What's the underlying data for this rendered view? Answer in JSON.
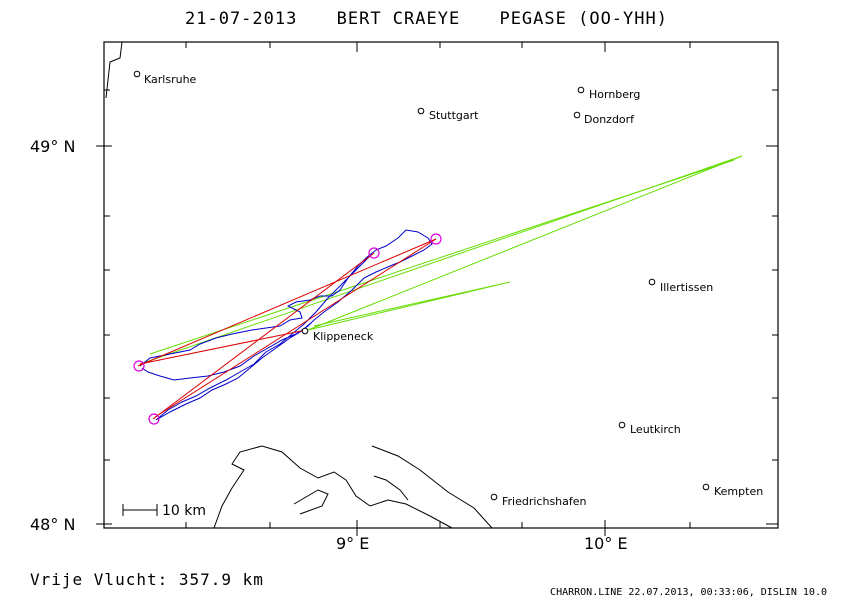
{
  "title": {
    "date": "21-07-2013",
    "pilot": "BERT CRAEYE",
    "glider": "PEGASE (OO-YHH)"
  },
  "axes": {
    "lat_labels": [
      "49° N",
      "48° N"
    ],
    "lon_labels": [
      "9° E",
      "10° E"
    ]
  },
  "scale_bar": {
    "label": "10 km"
  },
  "places": [
    {
      "name": "Karlsruhe"
    },
    {
      "name": "Stuttgart"
    },
    {
      "name": "Hornberg"
    },
    {
      "name": "Donzdorf"
    },
    {
      "name": "Illertissen"
    },
    {
      "name": "Klippeneck"
    },
    {
      "name": "Leutkirch"
    },
    {
      "name": "Friedrichshafen"
    },
    {
      "name": "Kempten"
    }
  ],
  "colors": {
    "track": "#0000cc",
    "task": "#dd0000",
    "alt_track": "#66dd00",
    "turnpoint": "#dd00dd",
    "frame": "#000000"
  },
  "footer": {
    "distance_label": "Vrije Vlucht:  357.9 km",
    "software": "CHARRON.LINE 22.07.2013, 00:33:06, DISLIN 10.0"
  }
}
